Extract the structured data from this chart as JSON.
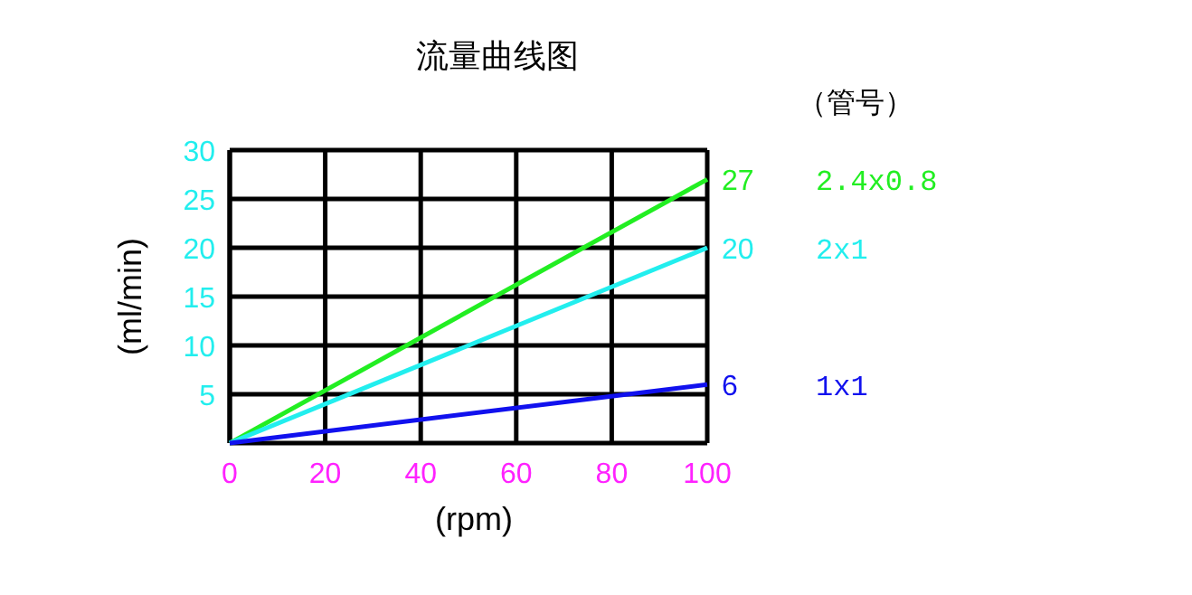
{
  "chart_data": {
    "type": "line",
    "title": "流量曲线图",
    "xlabel": "(rpm)",
    "ylabel": "(ml/min)",
    "legend_title": "（管号）",
    "x": [
      0,
      100
    ],
    "xlim": [
      0,
      100
    ],
    "ylim": [
      0,
      30
    ],
    "xticks": [
      0,
      20,
      40,
      60,
      80,
      100
    ],
    "yticks": [
      5,
      10,
      15,
      20,
      25,
      30
    ],
    "grid": true,
    "legend": "right",
    "marker": "none",
    "line_style": "solid",
    "series": [
      {
        "name": "2.4x0.8",
        "color": "#22ee22",
        "values": [
          0,
          27
        ],
        "value_labels": [
          null,
          "27"
        ]
      },
      {
        "name": "2x1",
        "color": "#22eeee",
        "values": [
          0,
          20
        ],
        "value_labels": [
          null,
          "20"
        ]
      },
      {
        "name": "1x1",
        "color": "#1111ee",
        "values": [
          0,
          6
        ],
        "value_labels": [
          null,
          "6"
        ]
      }
    ]
  }
}
